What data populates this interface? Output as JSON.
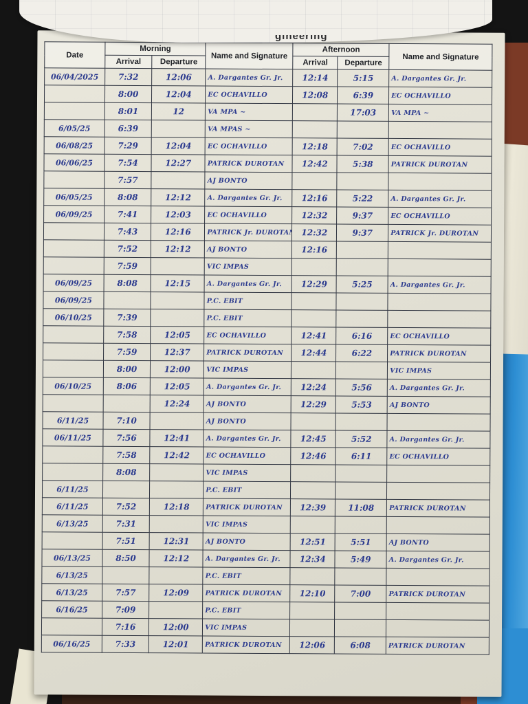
{
  "scene": {
    "description": "photo of a handwritten attendance log sheet on a notepad",
    "title_fragment": "gineering",
    "colors": {
      "paper": "#e2e0d4",
      "ink_blue": "#2b3a8e",
      "grid_line": "#2f3440",
      "background_dark": "#141414",
      "desk_brown": "#7b3a26",
      "desk_dark": "#3a2318",
      "book_cream": "#ece8d8",
      "folder_blue": "#2d8ed3"
    }
  },
  "document": {
    "table": {
      "headers": {
        "date": "Date",
        "morning": "Morning",
        "afternoon": "Afternoon",
        "arrival": "Arrival",
        "departure": "Departure",
        "name_signature": "Name and Signature"
      },
      "rows": [
        [
          "06/04/2025",
          "7:32",
          "12:06",
          "A. Dargantes Gr. Jr.",
          "12:14",
          "5:15",
          "A. Dargantes Gr. Jr."
        ],
        [
          "",
          "8:00",
          "12:04",
          "EC OCHAVILLO",
          "12:08",
          "6:39",
          "EC OCHAVILLO"
        ],
        [
          "",
          "8:01",
          "12",
          "VA MPA ~",
          "",
          "17:03",
          "VA MPA ~"
        ],
        [
          "6/05/25",
          "6:39",
          "",
          "VA MPAS ~",
          "",
          "",
          ""
        ],
        [
          "06/08/25",
          "7:29",
          "12:04",
          "EC OCHAVILLO",
          "12:18",
          "7:02",
          "EC OCHAVILLO"
        ],
        [
          "06/06/25",
          "7:54",
          "12:27",
          "PATRICK DUROTAN",
          "12:42",
          "5:38",
          "PATRICK DUROTAN"
        ],
        [
          "",
          "7:57",
          "",
          "AJ BONTO",
          "",
          "",
          ""
        ],
        [
          "06/05/25",
          "8:08",
          "12:12",
          "A. Dargantes Gr. Jr.",
          "12:16",
          "5:22",
          "A. Dargantes Gr. Jr."
        ],
        [
          "06/09/25",
          "7:41",
          "12:03",
          "EC OCHAVILLO",
          "12:32",
          "9:37",
          "EC OCHAVILLO"
        ],
        [
          "",
          "7:43",
          "12:16",
          "PATRICK Jr. DUROTAN",
          "12:32",
          "9:37",
          "PATRICK Jr. DUROTAN"
        ],
        [
          "",
          "7:52",
          "12:12",
          "AJ BONTO",
          "12:16",
          "",
          ""
        ],
        [
          "",
          "7:59",
          "",
          "VIC IMPAS",
          "",
          "",
          ""
        ],
        [
          "06/09/25",
          "8:08",
          "12:15",
          "A. Dargantes Gr. Jr.",
          "12:29",
          "5:25",
          "A. Dargantes Gr. Jr."
        ],
        [
          "06/09/25",
          "",
          "",
          "P.C. EBIT",
          "",
          "",
          ""
        ],
        [
          "06/10/25",
          "7:39",
          "",
          "P.C. EBIT",
          "",
          "",
          ""
        ],
        [
          "",
          "7:58",
          "12:05",
          "EC OCHAVILLO",
          "12:41",
          "6:16",
          "EC OCHAVILLO"
        ],
        [
          "",
          "7:59",
          "12:37",
          "PATRICK DUROTAN",
          "12:44",
          "6:22",
          "PATRICK DUROTAN"
        ],
        [
          "",
          "8:00",
          "12:00",
          "VIC IMPAS",
          "",
          "",
          "VIC IMPAS"
        ],
        [
          "06/10/25",
          "8:06",
          "12:05",
          "A. Dargantes Gr. Jr.",
          "12:24",
          "5:56",
          "A. Dargantes Gr. Jr."
        ],
        [
          "",
          "",
          "12:24",
          "AJ BONTO",
          "12:29",
          "5:53",
          "AJ BONTO"
        ],
        [
          "6/11/25",
          "7:10",
          "",
          "AJ BONTO",
          "",
          "",
          ""
        ],
        [
          "06/11/25",
          "7:56",
          "12:41",
          "A. Dargantes Gr. Jr.",
          "12:45",
          "5:52",
          "A. Dargantes Gr. Jr."
        ],
        [
          "",
          "7:58",
          "12:42",
          "EC OCHAVILLO",
          "12:46",
          "6:11",
          "EC OCHAVILLO"
        ],
        [
          "",
          "8:08",
          "",
          "VIC IMPAS",
          "",
          "",
          ""
        ],
        [
          "6/11/25",
          "",
          "",
          "P.C. EBIT",
          "",
          "",
          ""
        ],
        [
          "6/11/25",
          "7:52",
          "12:18",
          "PATRICK DUROTAN",
          "12:39",
          "11:08",
          "PATRICK DUROTAN"
        ],
        [
          "6/13/25",
          "7:31",
          "",
          "VIC IMPAS",
          "",
          "",
          ""
        ],
        [
          "",
          "7:51",
          "12:31",
          "AJ BONTO",
          "12:51",
          "5:51",
          "AJ BONTO"
        ],
        [
          "06/13/25",
          "8:50",
          "12:12",
          "A. Dargantes Gr. Jr.",
          "12:34",
          "5:49",
          "A. Dargantes Gr. Jr."
        ],
        [
          "6/13/25",
          "",
          "",
          "P.C. EBIT",
          "",
          "",
          ""
        ],
        [
          "6/13/25",
          "7:57",
          "12:09",
          "PATRICK DUROTAN",
          "12:10",
          "7:00",
          "PATRICK DUROTAN"
        ],
        [
          "6/16/25",
          "7:09",
          "",
          "P.C. EBIT",
          "",
          "",
          ""
        ],
        [
          "",
          "7:16",
          "12:00",
          "VIC IMPAS",
          "",
          "",
          ""
        ],
        [
          "06/16/25",
          "7:33",
          "12:01",
          "PATRICK DUROTAN",
          "12:06",
          "6:08",
          "PATRICK DUROTAN"
        ]
      ]
    }
  }
}
